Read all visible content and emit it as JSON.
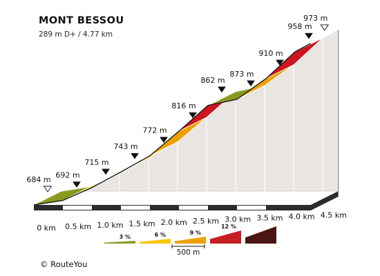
{
  "header": {
    "title": "MONT BESSOU",
    "subtitle": "289 m D+ / 4.77 km"
  },
  "footer": {
    "credit": "© RouteYou"
  },
  "chart_data": {
    "type": "area",
    "title": "MONT BESSOU",
    "subtitle": "289 m D+ / 4.77 km",
    "xlabel": "",
    "ylabel": "",
    "x_unit": "km",
    "y_unit": "m",
    "xlim": [
      0,
      4.77
    ],
    "ylim": [
      684,
      973
    ],
    "total_distance_km": 4.77,
    "total_climb_m": 289,
    "x_tick_labels": [
      "0 km",
      "0.5 km",
      "1.0 km",
      "1.5 km",
      "2.0 km",
      "2.5 km",
      "3.0 km",
      "3.5 km",
      "4.0 km",
      "4.5 km"
    ],
    "x": [
      0,
      0.5,
      1.0,
      1.5,
      2.0,
      2.5,
      3.0,
      3.5,
      4.0,
      4.5,
      4.77
    ],
    "elevation": [
      684,
      692,
      715,
      743,
      772,
      816,
      862,
      873,
      910,
      958,
      973
    ],
    "elevation_labels": [
      "684 m",
      "692 m",
      "715 m",
      "743 m",
      "772 m",
      "816 m",
      "862 m",
      "873 m",
      "910 m",
      "958 m",
      "973 m"
    ],
    "segment_colors": [
      "#8a9a1f",
      "#f7c600",
      "#f7c600",
      "#f7c600",
      "#eda000",
      "#cf1420",
      "#8a9a1f",
      "#eda000",
      "#cf1420",
      "#f7c600"
    ],
    "start_marker": "open-triangle",
    "summit_marker": "open-triangle",
    "legend": {
      "placement": "bottom",
      "items": [
        {
          "label": "3 %",
          "color": "#8a9a1f"
        },
        {
          "label": "6 %",
          "color": "#f7c600"
        },
        {
          "label": "9 %",
          "color": "#eda000"
        },
        {
          "label": "12 %",
          "color": "#c71f24"
        },
        {
          "label": "",
          "color": "#4a1512"
        }
      ],
      "scale_label": "500 m"
    }
  }
}
